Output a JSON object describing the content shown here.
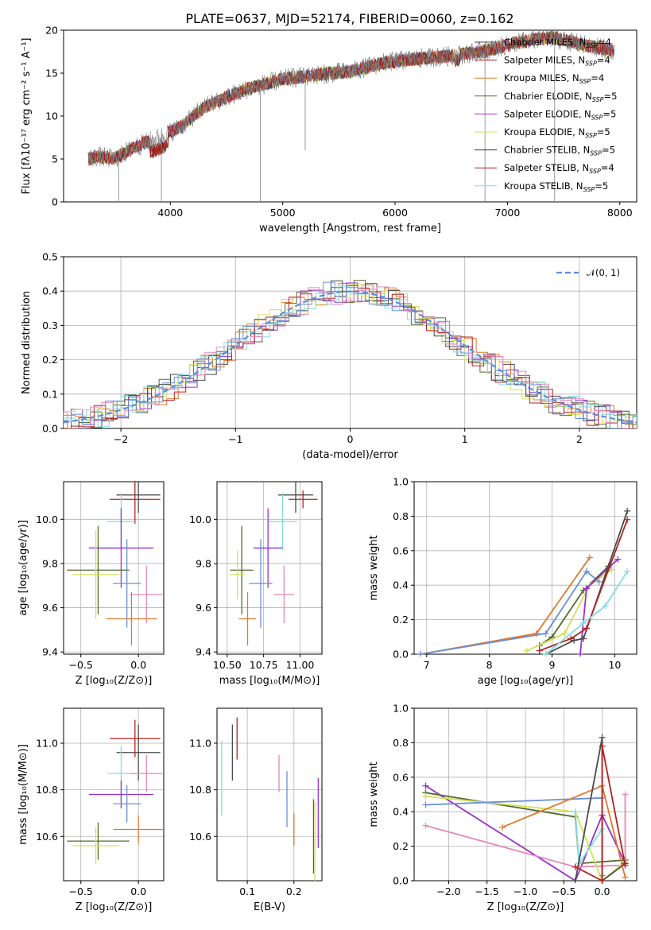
{
  "title": "PLATE=0637, MJD=52174, FIBERID=0060, z=0.162",
  "colors": {
    "axes": "#000000",
    "grid": "#b0b0b0",
    "series": [
      "#4a4a4a",
      "#a01818",
      "#e0782a",
      "#556b2f",
      "#9932cc",
      "#d4e157",
      "#333333",
      "#b22222",
      "#80dee6",
      "#6a8fd6",
      "#e589b8"
    ]
  },
  "chart_data": [
    {
      "id": "spectrum",
      "type": "line",
      "xlabel": "wavelength [Angstrom, rest frame]",
      "ylabel": "Flux [fλ10⁻¹⁷ erg cm⁻² s⁻¹ A⁻¹]",
      "xlim": [
        3050,
        8150
      ],
      "ylim": [
        0,
        20
      ],
      "xticks": [
        4000,
        5000,
        6000,
        7000,
        8000
      ],
      "yticks": [
        0,
        5,
        10,
        15,
        20
      ],
      "grid": false,
      "legend_position": "top-right",
      "continuum_x": [
        3270,
        3350,
        3500,
        3700,
        3900,
        4100,
        4300,
        4500,
        4700,
        5000,
        5300,
        5600,
        5900,
        6200,
        6500,
        6800,
        7100,
        7400,
        7700,
        7950
      ],
      "continuum_y": [
        5.0,
        5.3,
        5.0,
        6.5,
        7.5,
        8.8,
        11.0,
        12.2,
        13.2,
        14.3,
        14.8,
        15.2,
        16.2,
        16.7,
        17.0,
        17.6,
        18.6,
        19.2,
        18.2,
        17.6
      ],
      "series": [
        {
          "name": "Chabrier MILES, N_SSP=4",
          "color": "#4a4a4a"
        },
        {
          "name": "Salpeter MILES, N_SSP=4",
          "color": "#a01818"
        },
        {
          "name": "Kroupa MILES, N_SSP=4",
          "color": "#e0782a"
        },
        {
          "name": "Chabrier ELODIE, N_SSP=5",
          "color": "#556b2f"
        },
        {
          "name": "Salpeter ELODIE, N_SSP=5",
          "color": "#9932cc"
        },
        {
          "name": "Kroupa ELODIE, N_SSP=5",
          "color": "#d4e157"
        },
        {
          "name": "Chabrier STELIB, N_SSP=5",
          "color": "#333333"
        },
        {
          "name": "Salpeter STELIB, N_SSP=4",
          "color": "#b22222"
        },
        {
          "name": "Kroupa STELIB, N_SSP=5",
          "color": "#80dee6"
        }
      ],
      "legend_labels": [
        {
          "base": "Chabrier MILES, N",
          "sub": "SSP",
          "tail": "=4"
        },
        {
          "base": "Salpeter MILES, N",
          "sub": "SSP",
          "tail": "=4"
        },
        {
          "base": "Kroupa MILES, N",
          "sub": "SSP",
          "tail": "=4"
        },
        {
          "base": "Chabrier ELODIE, N",
          "sub": "SSP",
          "tail": "=5"
        },
        {
          "base": "Salpeter ELODIE, N",
          "sub": "SSP",
          "tail": "=5"
        },
        {
          "base": "Kroupa ELODIE, N",
          "sub": "SSP",
          "tail": "=5"
        },
        {
          "base": "Chabrier STELIB, N",
          "sub": "SSP",
          "tail": "=5"
        },
        {
          "base": "Salpeter STELIB, N",
          "sub": "SSP",
          "tail": "=4"
        },
        {
          "base": "Kroupa STELIB, N",
          "sub": "SSP",
          "tail": "=5"
        }
      ]
    },
    {
      "id": "residuals",
      "type": "line",
      "xlabel": "(data-model)/error",
      "ylabel": "Normed distribution",
      "xlim": [
        -2.5,
        2.5
      ],
      "ylim": [
        0,
        0.5
      ],
      "xticks": [
        -2,
        -1,
        0,
        1,
        2
      ],
      "xtick_labels": [
        "−2",
        "−1",
        "0",
        "1",
        "2"
      ],
      "yticks": [
        0.0,
        0.1,
        0.2,
        0.3,
        0.4,
        0.5
      ],
      "ytick_labels": [
        "0.0",
        "0.1",
        "0.2",
        "0.3",
        "0.4",
        "0.5"
      ],
      "grid": true,
      "legend_position": "top-right",
      "legend_label": "𝒩(0, 1)",
      "reference_color": "#5b8fd6",
      "bin_width": 0.1
    },
    {
      "id": "age_vs_Z",
      "type": "scatter",
      "xlabel": "Z [log₁₀(Z/Z⊙)]",
      "ylabel": "age  [log₁₀(age/yr)]",
      "xlim": [
        -0.65,
        0.22
      ],
      "ylim": [
        9.39,
        10.17
      ],
      "xticks": [
        -0.5,
        0.0
      ],
      "xtick_labels": [
        "−0.5",
        "0.0"
      ],
      "yticks": [
        9.4,
        9.6,
        9.8,
        10.0
      ],
      "ytick_labels": [
        "9.4",
        "9.6",
        "9.8",
        "10.0"
      ],
      "grid": true,
      "points": [
        {
          "x": 0.0,
          "y": 10.11,
          "xerr": 0.19,
          "yerr": 0.08,
          "color": "#4a4a4a"
        },
        {
          "x": -0.03,
          "y": 10.09,
          "xerr": 0.22,
          "yerr": 0.11,
          "color": "#b22222"
        },
        {
          "x": -0.15,
          "y": 9.99,
          "xerr": 0.12,
          "yerr": 0.13,
          "color": "#80dee6"
        },
        {
          "x": -0.15,
          "y": 9.87,
          "xerr": 0.28,
          "yerr": 0.18,
          "color": "#9932cc"
        },
        {
          "x": -0.35,
          "y": 9.77,
          "xerr": 0.27,
          "yerr": 0.2,
          "color": "#556b2f"
        },
        {
          "x": -0.37,
          "y": 9.75,
          "xerr": 0.2,
          "yerr": 0.2,
          "color": "#d4e157"
        },
        {
          "x": -0.1,
          "y": 9.71,
          "xerr": 0.12,
          "yerr": 0.2,
          "color": "#6a8fd6"
        },
        {
          "x": 0.07,
          "y": 9.66,
          "xerr": 0.14,
          "yerr": 0.13,
          "color": "#e589b8"
        },
        {
          "x": -0.06,
          "y": 9.55,
          "xerr": 0.22,
          "yerr": 0.12,
          "color": "#e0782a"
        }
      ]
    },
    {
      "id": "age_vs_mass",
      "type": "scatter",
      "xlabel": "mass [log₁₀(M/M⊙)]",
      "ylabel": "",
      "xlim": [
        10.43,
        11.15
      ],
      "ylim": [
        9.39,
        10.17
      ],
      "xticks": [
        10.5,
        10.75,
        11.0
      ],
      "xtick_labels": [
        "10.50",
        "10.75",
        "11.00"
      ],
      "yticks": [
        9.4,
        9.6,
        9.8,
        10.0
      ],
      "ytick_labels": [
        "9.4",
        "9.6",
        "9.8",
        "10.0"
      ],
      "grid": true,
      "points": [
        {
          "x": 10.97,
          "y": 10.11,
          "xerr": 0.12,
          "yerr": 0.08,
          "color": "#4a4a4a"
        },
        {
          "x": 11.02,
          "y": 10.09,
          "xerr": 0.1,
          "yerr": 0.04,
          "color": "#b22222"
        },
        {
          "x": 10.88,
          "y": 9.99,
          "xerr": 0.1,
          "yerr": 0.13,
          "color": "#80dee6"
        },
        {
          "x": 10.78,
          "y": 9.87,
          "xerr": 0.1,
          "yerr": 0.18,
          "color": "#9932cc"
        },
        {
          "x": 10.6,
          "y": 9.77,
          "xerr": 0.08,
          "yerr": 0.2,
          "color": "#556b2f"
        },
        {
          "x": 10.57,
          "y": 9.75,
          "xerr": 0.05,
          "yerr": 0.11,
          "color": "#d4e157"
        },
        {
          "x": 10.73,
          "y": 9.71,
          "xerr": 0.08,
          "yerr": 0.2,
          "color": "#6a8fd6"
        },
        {
          "x": 10.89,
          "y": 9.66,
          "xerr": 0.07,
          "yerr": 0.13,
          "color": "#e589b8"
        },
        {
          "x": 10.64,
          "y": 9.55,
          "xerr": 0.06,
          "yerr": 0.12,
          "color": "#e0782a"
        }
      ]
    },
    {
      "id": "weight_vs_age",
      "type": "line",
      "xlabel": "age  [log₁₀(age/yr)]",
      "ylabel": "mass weight",
      "xlim": [
        6.8,
        10.35
      ],
      "ylim": [
        0,
        1
      ],
      "xticks": [
        7,
        8,
        9,
        10
      ],
      "yticks": [
        0.0,
        0.2,
        0.4,
        0.6,
        0.8,
        1.0
      ],
      "ytick_labels": [
        "0.0",
        "0.2",
        "0.4",
        "0.6",
        "0.8",
        "1.0"
      ],
      "grid": true,
      "series": [
        {
          "color": "#e0782a",
          "x": [
            6.9,
            8.75,
            9.6
          ],
          "y": [
            0.0,
            0.12,
            0.56
          ]
        },
        {
          "color": "#6a8fd6",
          "x": [
            6.9,
            8.9,
            9.55,
            9.75
          ],
          "y": [
            0.0,
            0.12,
            0.48,
            0.42
          ]
        },
        {
          "color": "#556b2f",
          "x": [
            8.8,
            9.0,
            9.5,
            9.9
          ],
          "y": [
            0.05,
            0.1,
            0.37,
            0.51
          ]
        },
        {
          "color": "#d4e157",
          "x": [
            8.6,
            9.2,
            9.6,
            9.95
          ],
          "y": [
            0.02,
            0.12,
            0.4,
            0.49
          ]
        },
        {
          "color": "#9932cc",
          "x": [
            9.45,
            9.55,
            9.9,
            10.05
          ],
          "y": [
            0.0,
            0.38,
            0.5,
            0.55
          ]
        },
        {
          "color": "#4a4a4a",
          "x": [
            8.9,
            9.35,
            9.5,
            10.2
          ],
          "y": [
            0.0,
            0.08,
            0.09,
            0.83
          ]
        },
        {
          "color": "#b22222",
          "x": [
            8.8,
            9.3,
            9.55,
            10.2
          ],
          "y": [
            0.02,
            0.09,
            0.15,
            0.78
          ]
        },
        {
          "color": "#80dee6",
          "x": [
            8.9,
            9.5,
            9.85,
            10.2
          ],
          "y": [
            0.0,
            0.18,
            0.28,
            0.48
          ]
        }
      ]
    },
    {
      "id": "mass_vs_Z",
      "type": "scatter",
      "xlabel": "Z [log₁₀(Z/Z⊙)]",
      "ylabel": "mass [log₁₀(M/M⊙)]",
      "xlim": [
        -0.65,
        0.22
      ],
      "ylim": [
        10.41,
        11.15
      ],
      "xticks": [
        -0.5,
        0.0
      ],
      "xtick_labels": [
        "−0.5",
        "0.0"
      ],
      "yticks": [
        10.6,
        10.8,
        11.0
      ],
      "ytick_labels": [
        "10.6",
        "10.8",
        "11.0"
      ],
      "grid": true,
      "points": [
        {
          "x": 0.0,
          "y": 10.96,
          "xerr": 0.19,
          "yerr": 0.12,
          "color": "#4a4a4a"
        },
        {
          "x": -0.03,
          "y": 11.02,
          "xerr": 0.22,
          "yerr": 0.08,
          "color": "#b22222"
        },
        {
          "x": -0.15,
          "y": 10.87,
          "xerr": 0.12,
          "yerr": 0.12,
          "color": "#80dee6"
        },
        {
          "x": 0.07,
          "y": 10.87,
          "xerr": 0.14,
          "yerr": 0.08,
          "color": "#e589b8"
        },
        {
          "x": -0.15,
          "y": 10.78,
          "xerr": 0.28,
          "yerr": 0.06,
          "color": "#9932cc"
        },
        {
          "x": -0.1,
          "y": 10.74,
          "xerr": 0.12,
          "yerr": 0.08,
          "color": "#6a8fd6"
        },
        {
          "x": 0.0,
          "y": 10.63,
          "xerr": 0.22,
          "yerr": 0.06,
          "color": "#e0782a"
        },
        {
          "x": -0.35,
          "y": 10.58,
          "xerr": 0.27,
          "yerr": 0.08,
          "color": "#556b2f"
        },
        {
          "x": -0.37,
          "y": 10.56,
          "xerr": 0.2,
          "yerr": 0.08,
          "color": "#d4e157"
        }
      ]
    },
    {
      "id": "mass_vs_ebv",
      "type": "scatter",
      "xlabel": "E(B-V)",
      "ylabel": "",
      "xlim": [
        0.035,
        0.26
      ],
      "ylim": [
        10.41,
        11.15
      ],
      "xticks": [
        0.1,
        0.2
      ],
      "xtick_labels": [
        "0.1",
        "0.2"
      ],
      "yticks": [
        10.6,
        10.8,
        11.0
      ],
      "ytick_labels": [
        "10.6",
        "10.8",
        "11.0"
      ],
      "grid": true,
      "points": [
        {
          "x": 0.045,
          "y": 10.85,
          "yerr": 0.16,
          "color": "#80dee6"
        },
        {
          "x": 0.068,
          "y": 10.96,
          "yerr": 0.12,
          "color": "#4a4a4a"
        },
        {
          "x": 0.078,
          "y": 11.02,
          "yerr": 0.09,
          "color": "#b22222"
        },
        {
          "x": 0.168,
          "y": 10.87,
          "yerr": 0.08,
          "color": "#e589b8"
        },
        {
          "x": 0.185,
          "y": 10.76,
          "yerr": 0.12,
          "color": "#6a8fd6"
        },
        {
          "x": 0.2,
          "y": 10.63,
          "yerr": 0.07,
          "color": "#e0782a"
        },
        {
          "x": 0.242,
          "y": 10.6,
          "yerr": 0.16,
          "color": "#556b2f"
        },
        {
          "x": 0.245,
          "y": 10.58,
          "yerr": 0.17,
          "color": "#d4e157"
        },
        {
          "x": 0.252,
          "y": 10.7,
          "yerr": 0.15,
          "color": "#9932cc"
        }
      ]
    },
    {
      "id": "weight_vs_Z",
      "type": "line",
      "xlabel": "Z [log₁₀(Z/Z⊙)]",
      "ylabel": "mass weight",
      "xlim": [
        -2.45,
        0.45
      ],
      "ylim": [
        0,
        1
      ],
      "xticks": [
        -2.0,
        -1.5,
        -1.0,
        -0.5,
        0.0
      ],
      "xtick_labels": [
        "−2.0",
        "−1.5",
        "−1.0",
        "−0.5",
        "0.0"
      ],
      "yticks": [
        0.0,
        0.2,
        0.4,
        0.6,
        0.8,
        1.0
      ],
      "ytick_labels": [
        "0.0",
        "0.2",
        "0.4",
        "0.6",
        "0.8",
        "1.0"
      ],
      "grid": true,
      "series": [
        {
          "color": "#9932cc",
          "x": [
            -2.3,
            -0.35,
            0.0,
            0.3
          ],
          "y": [
            0.55,
            0.0,
            0.38,
            0.1
          ]
        },
        {
          "color": "#e589b8",
          "x": [
            -2.3,
            -0.35,
            0.3,
            0.3
          ],
          "y": [
            0.32,
            0.08,
            0.09,
            0.5
          ]
        },
        {
          "color": "#556b2f",
          "x": [
            -2.3,
            -0.35,
            -0.3,
            0.3
          ],
          "y": [
            0.51,
            0.37,
            0.1,
            0.12
          ]
        },
        {
          "color": "#d4e157",
          "x": [
            -2.3,
            -0.35,
            0.0,
            0.3
          ],
          "y": [
            0.49,
            0.4,
            0.0,
            0.11
          ]
        },
        {
          "color": "#6a8fd6",
          "x": [
            -2.3,
            0.0,
            0.0
          ],
          "y": [
            0.44,
            0.48,
            0.03
          ]
        },
        {
          "color": "#e0782a",
          "x": [
            -1.3,
            0.0,
            0.3
          ],
          "y": [
            0.31,
            0.55,
            0.02
          ]
        },
        {
          "color": "#80dee6",
          "x": [
            -0.35,
            -0.3,
            0.0
          ],
          "y": [
            0.4,
            0.1,
            0.3
          ]
        },
        {
          "color": "#4a4a4a",
          "x": [
            -0.35,
            0.0,
            0.0,
            0.3
          ],
          "y": [
            0.0,
            0.83,
            0.0,
            0.1
          ]
        },
        {
          "color": "#b22222",
          "x": [
            -0.35,
            0.0,
            0.0,
            0.3
          ],
          "y": [
            0.08,
            0.0,
            0.78,
            0.09
          ]
        }
      ]
    }
  ]
}
